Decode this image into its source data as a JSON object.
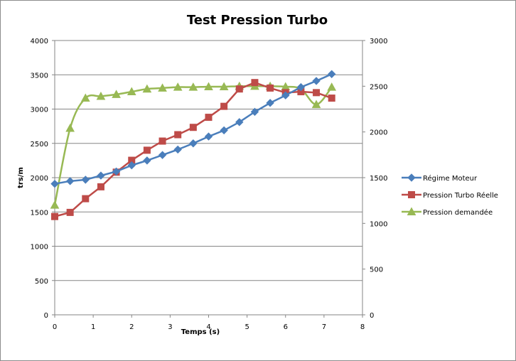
{
  "chart_data": {
    "type": "line",
    "title": "Test Pression Turbo",
    "xlabel": "Temps (s)",
    "ylabel": "trs/m",
    "y2label": "",
    "xlim": [
      0,
      8
    ],
    "ylim": [
      0,
      4000
    ],
    "y2lim": [
      0,
      3000
    ],
    "x_ticks": [
      "0",
      "1",
      "2",
      "3",
      "4",
      "5",
      "6",
      "7",
      "8"
    ],
    "y_ticks": [
      "0",
      "500",
      "1000",
      "1500",
      "2000",
      "2500",
      "3000",
      "3500",
      "4000"
    ],
    "y2_ticks": [
      "0",
      "500",
      "1000",
      "1500",
      "2000",
      "2500",
      "3000"
    ],
    "grid": true,
    "legend_position": "right",
    "series": [
      {
        "name": "Régime Moteur",
        "axis": "left",
        "color": "#4a7ebb",
        "marker": "diamond",
        "smooth": false,
        "x": [
          0,
          0.4,
          0.8,
          1.2,
          1.6,
          2.0,
          2.4,
          2.8,
          3.2,
          3.6,
          4.0,
          4.4,
          4.8,
          5.2,
          5.6,
          6.0,
          6.4,
          6.8,
          7.2
        ],
        "values": [
          1910,
          1950,
          1970,
          2030,
          2090,
          2180,
          2250,
          2330,
          2410,
          2500,
          2600,
          2690,
          2810,
          2960,
          3090,
          3200,
          3320,
          3410,
          3510
        ]
      },
      {
        "name": "Pression Turbo Réelle",
        "axis": "right",
        "color": "#be4b48",
        "marker": "square",
        "smooth": false,
        "x": [
          0,
          0.4,
          0.8,
          1.2,
          1.6,
          2.0,
          2.4,
          2.8,
          3.2,
          3.6,
          4.0,
          4.4,
          4.8,
          5.2,
          5.6,
          6.0,
          6.4,
          6.8,
          7.2
        ],
        "values": [
          1075,
          1120,
          1270,
          1400,
          1560,
          1690,
          1800,
          1900,
          1970,
          2050,
          2160,
          2280,
          2470,
          2540,
          2480,
          2430,
          2440,
          2430,
          2370
        ]
      },
      {
        "name": "Pression demandée",
        "axis": "right",
        "color": "#98b954",
        "marker": "triangle",
        "smooth": true,
        "x": [
          0,
          0.4,
          0.8,
          1.2,
          1.6,
          2.0,
          2.4,
          2.8,
          3.2,
          3.6,
          4.0,
          4.4,
          4.8,
          5.2,
          5.6,
          6.0,
          6.4,
          6.8,
          7.2
        ],
        "values": [
          1200,
          2040,
          2370,
          2390,
          2410,
          2440,
          2470,
          2480,
          2490,
          2490,
          2495,
          2495,
          2500,
          2500,
          2500,
          2495,
          2470,
          2300,
          2490
        ]
      }
    ]
  }
}
